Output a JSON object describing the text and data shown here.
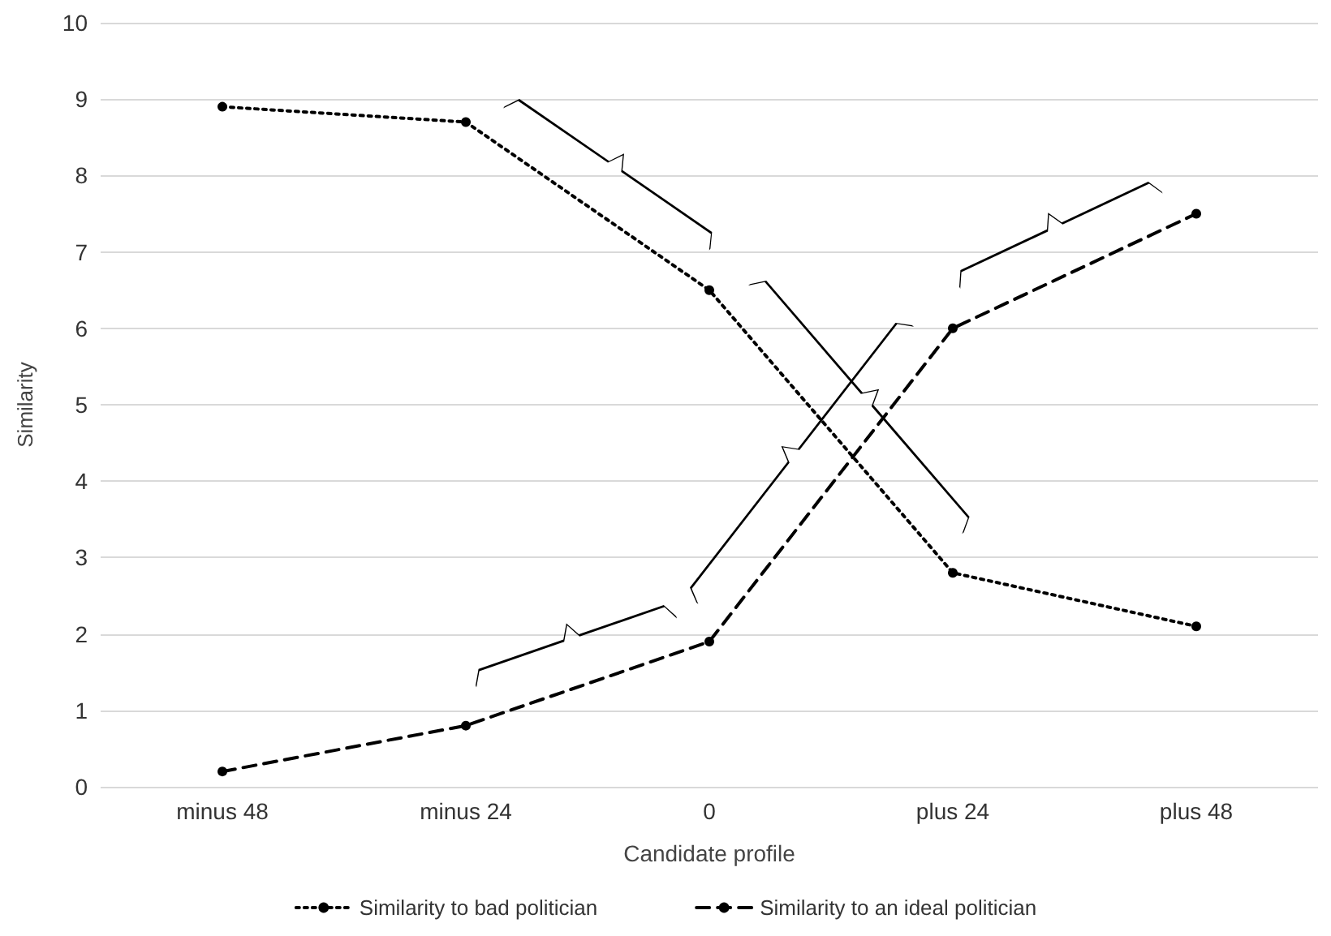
{
  "chart_data": {
    "type": "line",
    "xlabel": "Candidate profile",
    "ylabel": "Similarity",
    "categories": [
      "minus 48",
      "minus 24",
      "0",
      "plus 24",
      "plus 48"
    ],
    "series": [
      {
        "name": "Similarity to bad politician",
        "color": "#000000",
        "line_style": "dotted",
        "values": [
          8.9,
          8.7,
          6.5,
          2.8,
          2.1
        ]
      },
      {
        "name": "Similarity to an ideal politician",
        "color": "#000000",
        "line_style": "dashed",
        "values": [
          0.2,
          0.8,
          1.9,
          6.0,
          7.5
        ]
      }
    ],
    "ylim": [
      0,
      10
    ],
    "yticks": [
      0,
      1,
      2,
      3,
      4,
      5,
      6,
      7,
      8,
      9,
      10
    ],
    "grid": "y",
    "legend": "bottom",
    "marker": "circle"
  }
}
